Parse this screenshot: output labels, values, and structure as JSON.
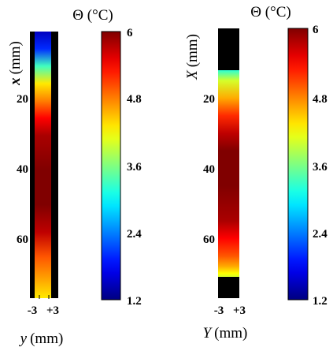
{
  "chart_data": [
    {
      "type": "heatmap",
      "panel": "left",
      "xlabel_var": "y",
      "xlabel_unit": "(mm)",
      "ylabel_var": "x",
      "ylabel_unit": "(mm)",
      "x_ticks": [
        "-3",
        "+3"
      ],
      "x_range": [
        -3,
        3
      ],
      "y_ticks": [
        "20",
        "40",
        "60"
      ],
      "y_tick_values": [
        20,
        40,
        60
      ],
      "y_range": [
        0,
        77
      ],
      "y_axis_reversed": true,
      "colorbar": {
        "title": "Θ (°C)",
        "ticks": [
          "6",
          "4.8",
          "3.6",
          "2.4",
          "1.2"
        ],
        "tick_values": [
          6,
          4.8,
          3.6,
          2.4,
          1.2
        ],
        "range": [
          1.2,
          6
        ],
        "colormap": "jet"
      },
      "profile": [
        {
          "pos": 0,
          "value": 1.5
        },
        {
          "pos": 5,
          "value": 2.0
        },
        {
          "pos": 10,
          "value": 3.3
        },
        {
          "pos": 15,
          "value": 4.3
        },
        {
          "pos": 20,
          "value": 4.8
        },
        {
          "pos": 25,
          "value": 5.4
        },
        {
          "pos": 30,
          "value": 5.8
        },
        {
          "pos": 40,
          "value": 6.0
        },
        {
          "pos": 50,
          "value": 6.0
        },
        {
          "pos": 58,
          "value": 5.7
        },
        {
          "pos": 65,
          "value": 5.0
        },
        {
          "pos": 72,
          "value": 4.6
        },
        {
          "pos": 77,
          "value": 4.3
        }
      ],
      "profile_span": [
        0,
        77
      ],
      "strip_x_range": [
        -3,
        1
      ],
      "right_region": "no-data (black)"
    },
    {
      "type": "heatmap",
      "panel": "right",
      "xlabel_var": "Y",
      "xlabel_unit": "(mm)",
      "ylabel_var": "X",
      "ylabel_unit": "(mm)",
      "x_ticks": [
        "-3",
        "+3"
      ],
      "x_range": [
        -3,
        3
      ],
      "y_ticks": [
        "20",
        "40",
        "60"
      ],
      "y_tick_values": [
        20,
        40,
        60
      ],
      "y_range": [
        0,
        77
      ],
      "y_axis_reversed": true,
      "colorbar": {
        "title": "Θ (°C)",
        "ticks": [
          "6",
          "4.8",
          "3.6",
          "2.4",
          "1.2"
        ],
        "tick_values": [
          6,
          4.8,
          3.6,
          2.4,
          1.2
        ],
        "range": [
          1.2,
          6
        ],
        "colormap": "jet"
      },
      "profile": [
        {
          "pos": 12,
          "value": 3.2
        },
        {
          "pos": 15,
          "value": 4.0
        },
        {
          "pos": 20,
          "value": 4.6
        },
        {
          "pos": 25,
          "value": 5.2
        },
        {
          "pos": 30,
          "value": 5.7
        },
        {
          "pos": 35,
          "value": 6.0
        },
        {
          "pos": 45,
          "value": 6.0
        },
        {
          "pos": 55,
          "value": 5.8
        },
        {
          "pos": 60,
          "value": 5.4
        },
        {
          "pos": 65,
          "value": 5.0
        },
        {
          "pos": 68,
          "value": 4.6
        },
        {
          "pos": 70,
          "value": 4.2
        },
        {
          "pos": 71,
          "value": 4.0
        }
      ],
      "profile_span": [
        12,
        71
      ],
      "no_data_regions": [
        [
          0,
          12
        ],
        [
          71,
          77
        ]
      ]
    }
  ]
}
